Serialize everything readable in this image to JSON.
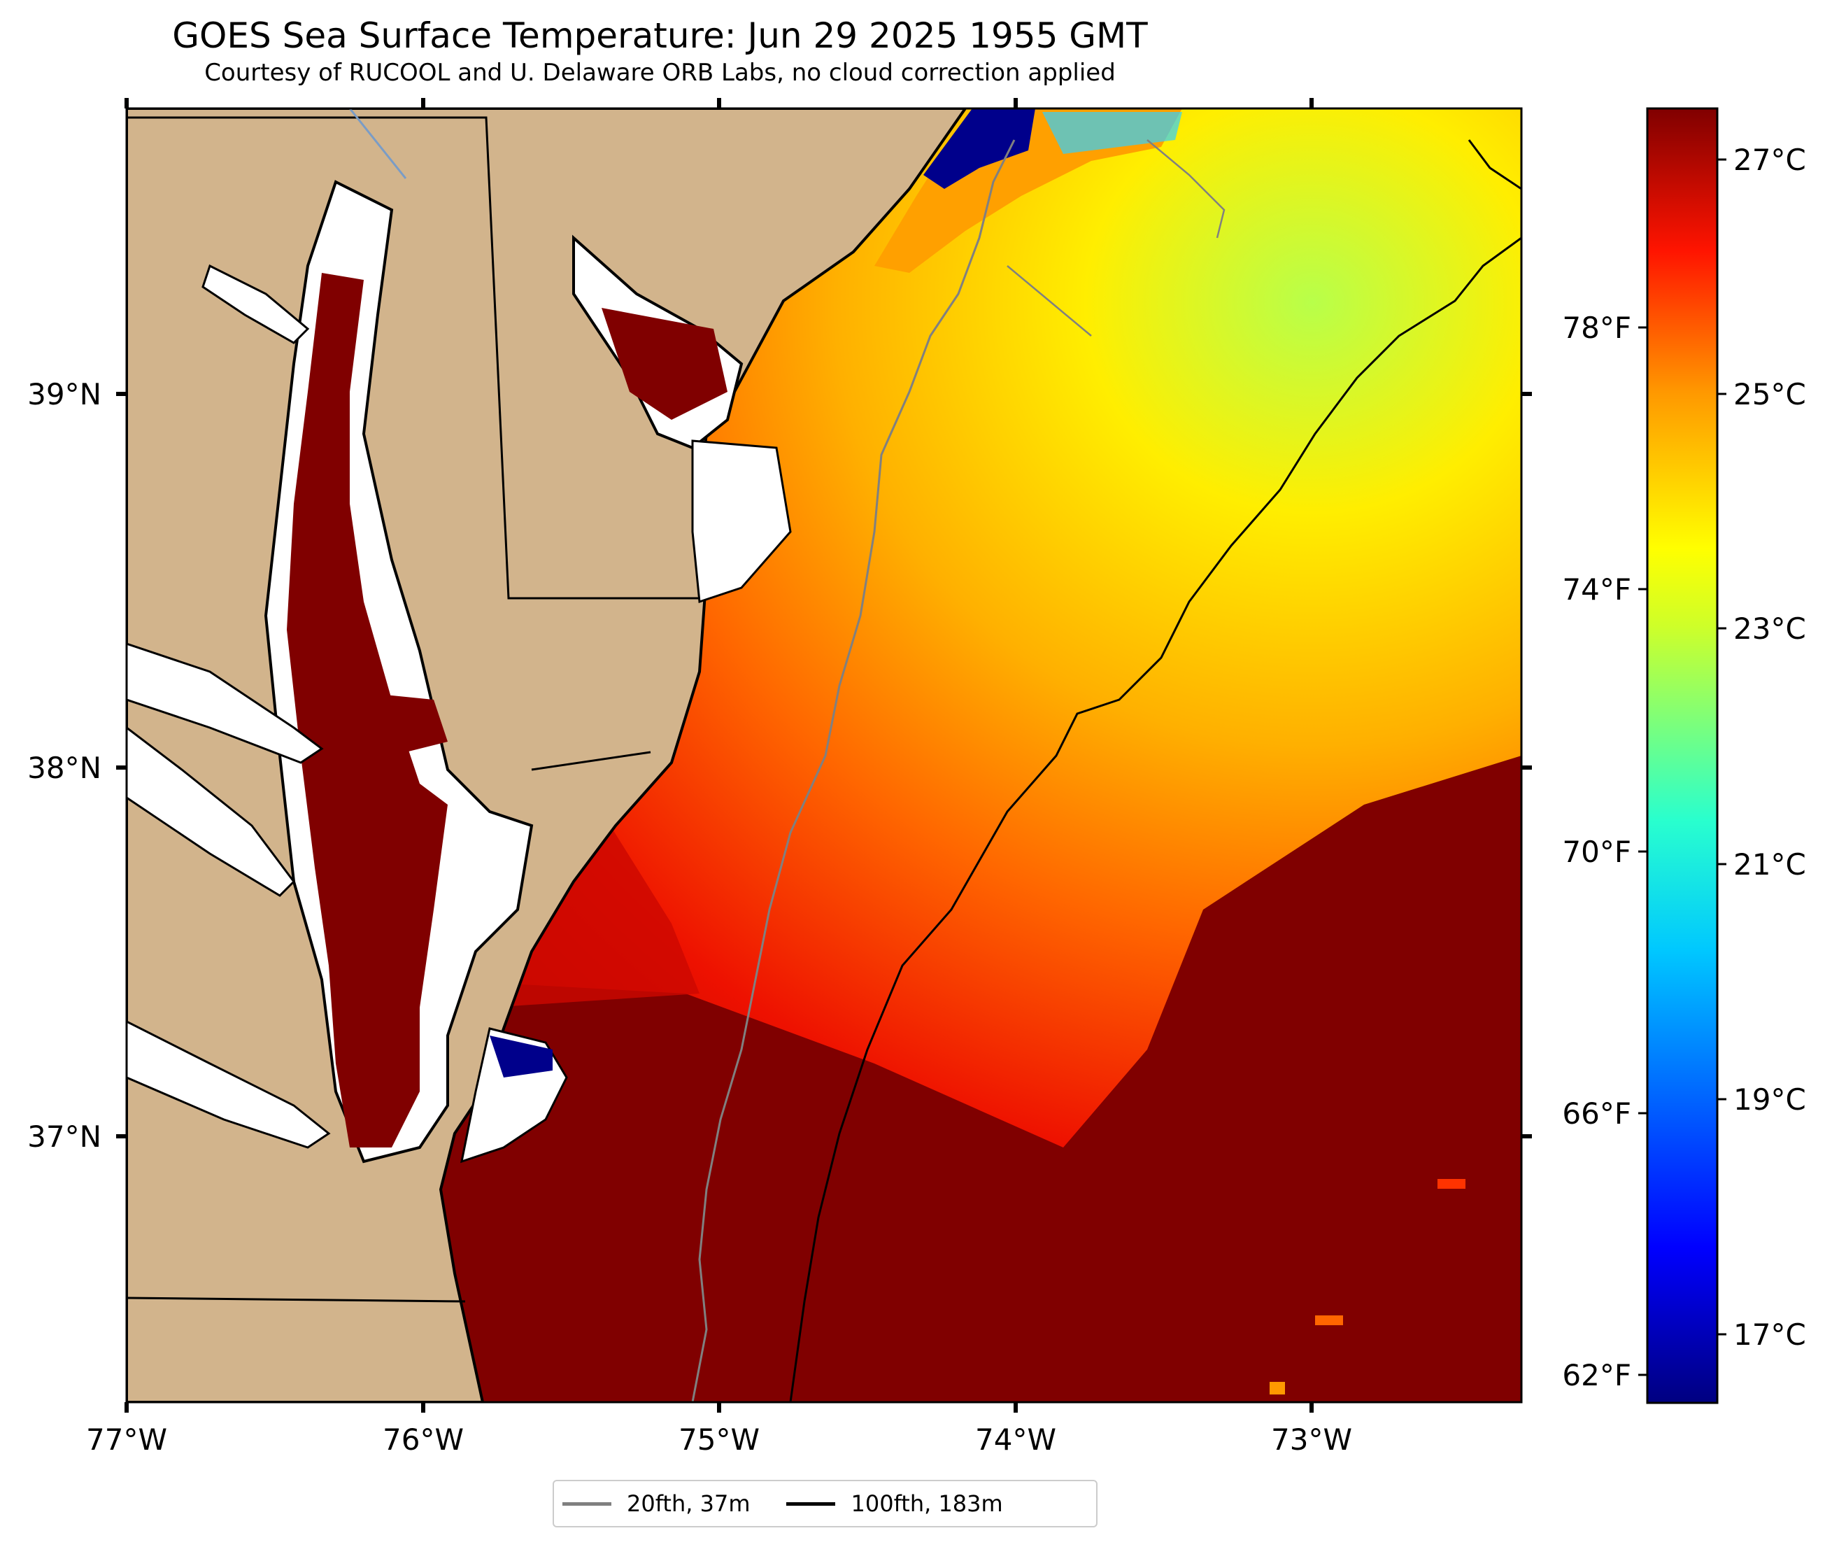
{
  "title": "GOES Sea Surface Temperature: Jun 29 2025 1955 GMT",
  "subtitle": "Courtesy of RUCOOL and U. Delaware ORB Labs, no cloud correction applied",
  "map": {
    "lon_range": [
      -77.0,
      -72.28
    ],
    "lat_range": [
      36.28,
      39.77
    ],
    "lon_ticks": [
      "77°W",
      "76°W",
      "75°W",
      "74°W",
      "73°W"
    ],
    "lat_ticks": [
      "39°N",
      "38°N",
      "37°N"
    ],
    "land_color": "#d2b48c",
    "inland_water_color": "#ffffff"
  },
  "colorbar": {
    "colormap": "jet",
    "celsius_ticks": [
      "27°C",
      "25°C",
      "23°C",
      "21°C",
      "19°C",
      "17°C"
    ],
    "fahrenheit_ticks": [
      "78°F",
      "74°F",
      "70°F",
      "66°F",
      "62°F"
    ]
  },
  "legend": {
    "items": [
      {
        "label": "20fth, 37m",
        "color": "#808080"
      },
      {
        "label": "100fth, 183m",
        "color": "#000000"
      }
    ]
  }
}
